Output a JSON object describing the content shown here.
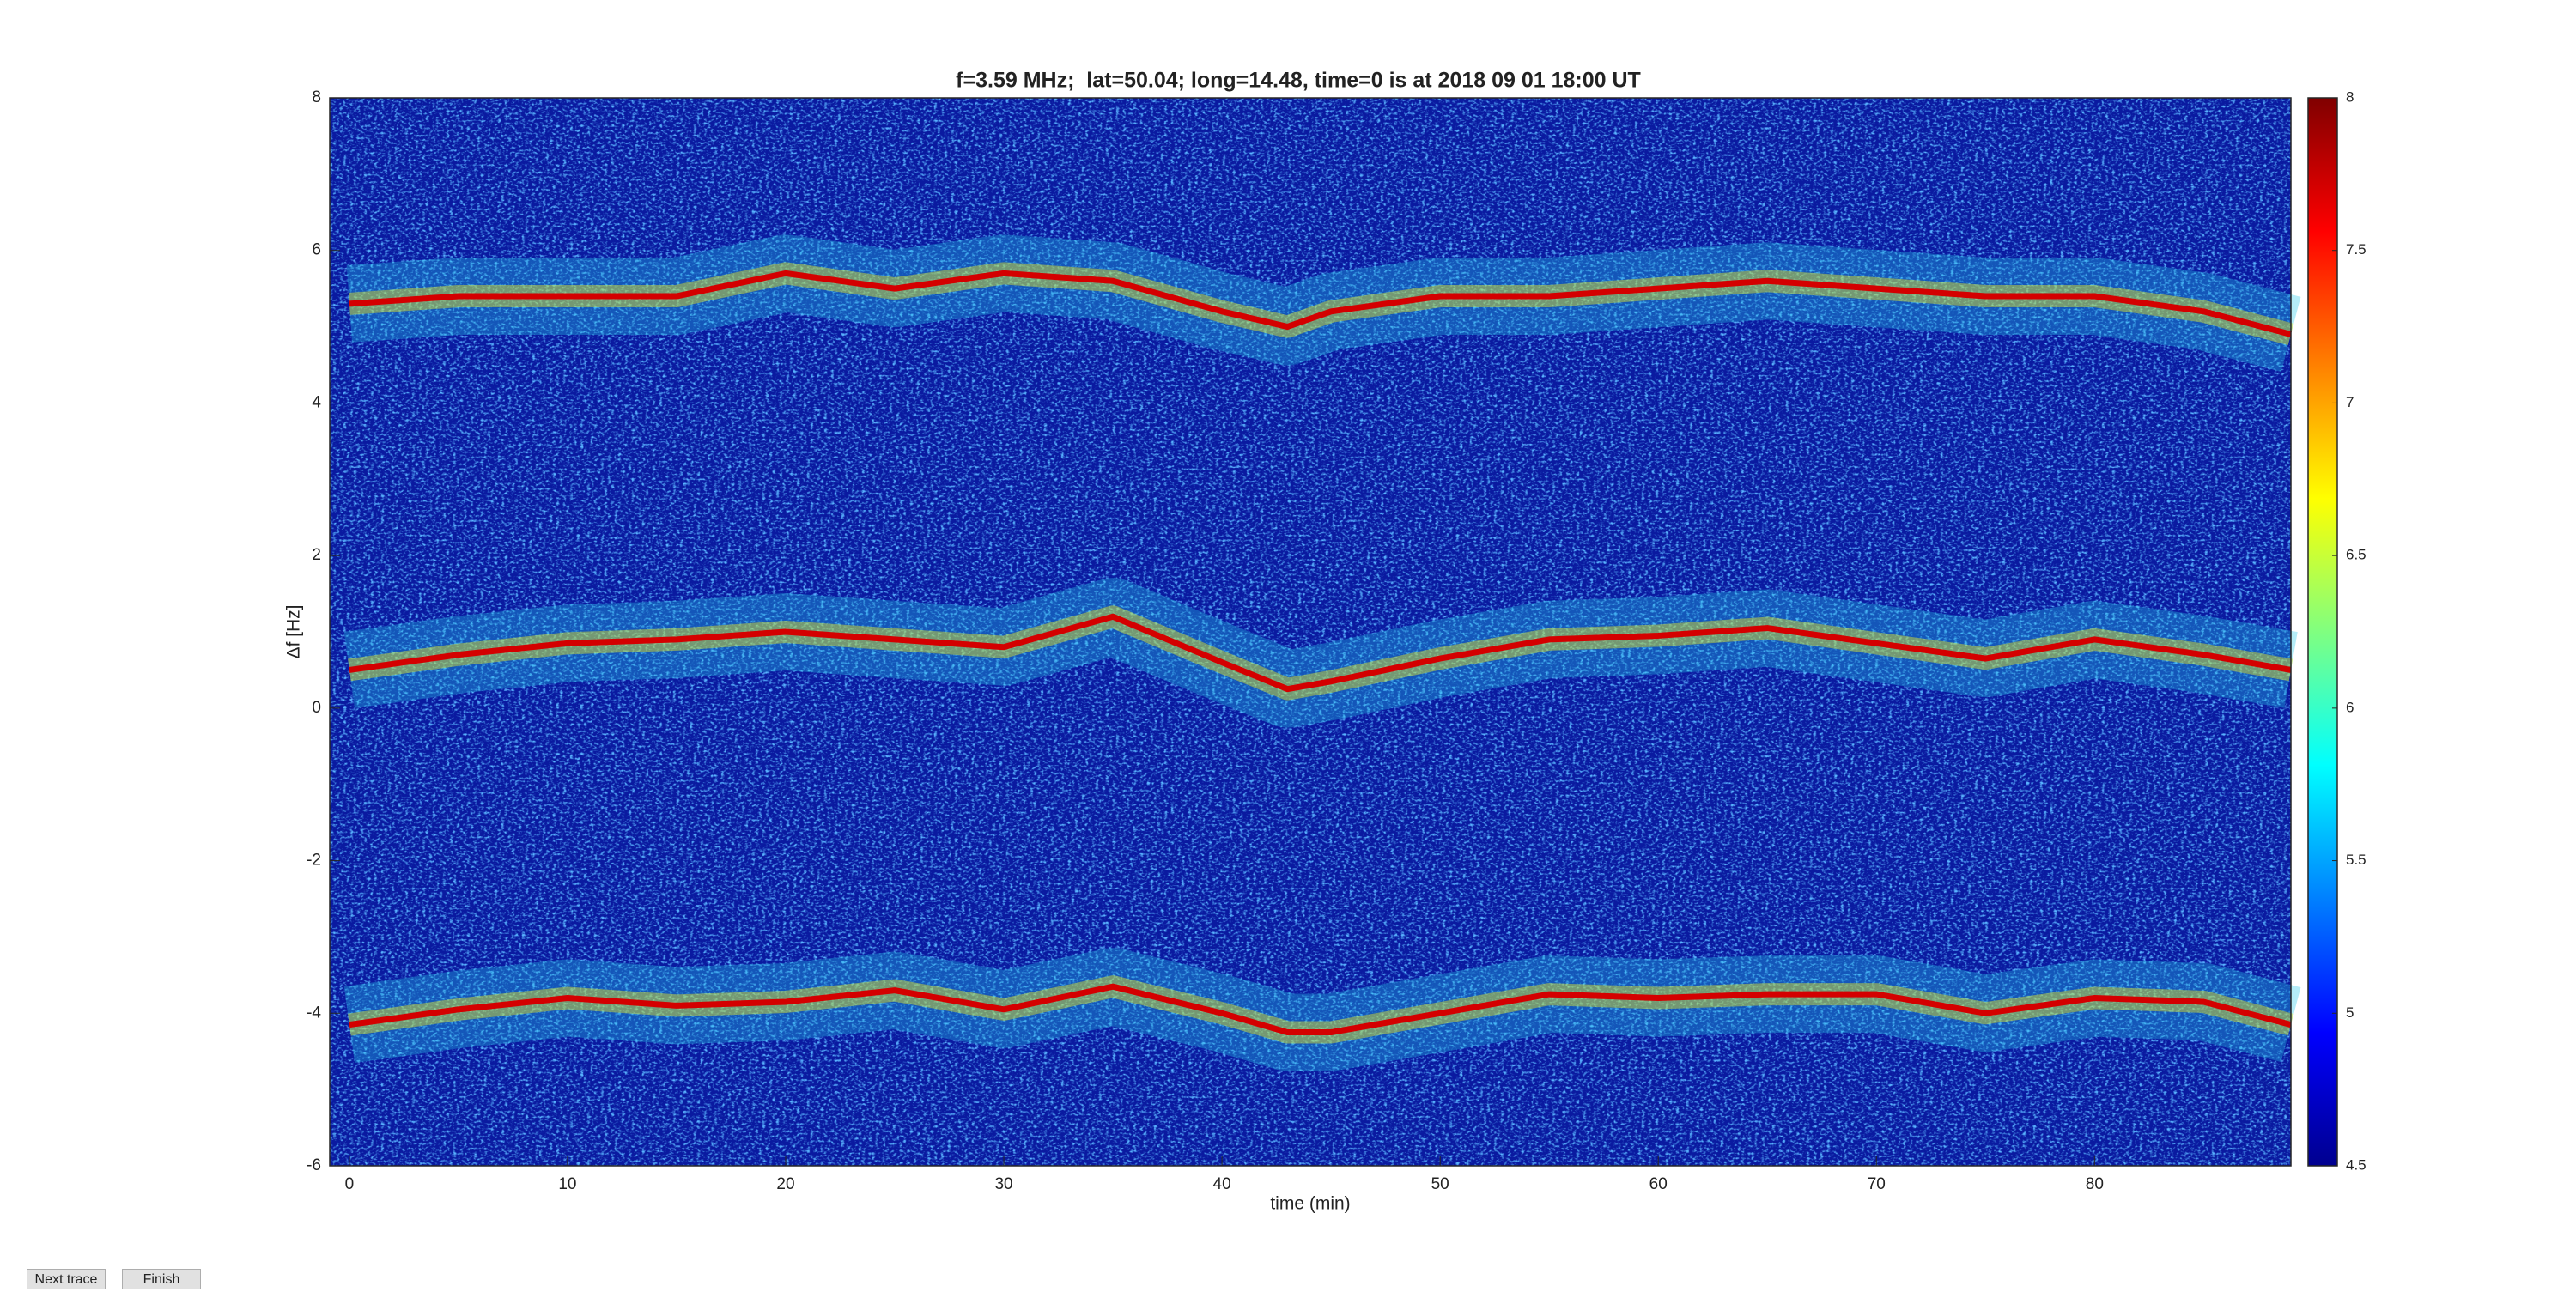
{
  "chart_data": {
    "type": "line",
    "title": "f=3.59 MHz;  lat=50.04; long=14.48, time=0 is at 2018 09 01 18:00 UT",
    "xlabel": "time (min)",
    "ylabel": "Δf [Hz]",
    "x": [
      0,
      5,
      10,
      15,
      20,
      25,
      30,
      35,
      40,
      43,
      45,
      50,
      55,
      60,
      65,
      70,
      75,
      80,
      85,
      89
    ],
    "series": [
      {
        "color": "#d40000",
        "values": [
          5.3,
          5.4,
          5.4,
          5.4,
          5.7,
          5.5,
          5.7,
          5.6,
          5.2,
          5.0,
          5.2,
          5.4,
          5.4,
          5.5,
          5.6,
          5.5,
          5.4,
          5.4,
          5.2,
          4.9
        ]
      },
      {
        "color": "#d40000",
        "values": [
          0.5,
          0.7,
          0.85,
          0.9,
          1.0,
          0.9,
          0.8,
          1.2,
          0.6,
          0.25,
          0.35,
          0.65,
          0.9,
          0.95,
          1.05,
          0.85,
          0.65,
          0.9,
          0.7,
          0.5
        ]
      },
      {
        "color": "#d40000",
        "values": [
          -4.15,
          -3.95,
          -3.8,
          -3.9,
          -3.85,
          -3.7,
          -3.95,
          -3.65,
          -4.0,
          -4.25,
          -4.25,
          -4.0,
          -3.75,
          -3.8,
          -3.75,
          -3.75,
          -4.0,
          -3.8,
          -3.85,
          -4.15
        ]
      }
    ],
    "xlim": [
      -0.9,
      89
    ],
    "xticks": [
      0,
      10,
      20,
      30,
      40,
      50,
      60,
      70,
      80
    ],
    "ylim": [
      -6,
      8
    ],
    "yticks": [
      -6,
      -4,
      -2,
      0,
      2,
      4,
      6,
      8
    ],
    "colormap": "jet",
    "clim": [
      4.5,
      8
    ],
    "cticks": [
      4.5,
      5,
      5.5,
      6,
      6.5,
      7,
      7.5,
      8
    ]
  },
  "buttons": [
    "Next trace",
    "Finish"
  ]
}
